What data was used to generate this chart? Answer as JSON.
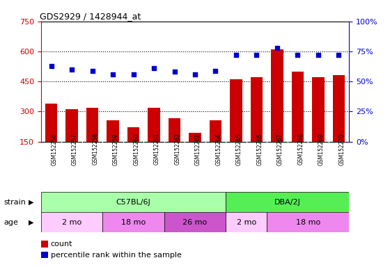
{
  "title": "GDS2929 / 1428944_at",
  "samples": [
    "GSM152256",
    "GSM152257",
    "GSM152258",
    "GSM152259",
    "GSM152260",
    "GSM152261",
    "GSM152262",
    "GSM152263",
    "GSM152264",
    "GSM152265",
    "GSM152266",
    "GSM152267",
    "GSM152268",
    "GSM152269",
    "GSM152270"
  ],
  "counts": [
    340,
    310,
    320,
    255,
    220,
    320,
    265,
    195,
    255,
    460,
    470,
    610,
    500,
    470,
    480
  ],
  "percentiles": [
    63,
    60,
    59,
    56,
    56,
    61,
    58,
    56,
    59,
    72,
    72,
    78,
    72,
    72,
    72
  ],
  "bar_color": "#cc0000",
  "dot_color": "#0000cc",
  "ylim_left": [
    150,
    750
  ],
  "ylim_right": [
    0,
    100
  ],
  "yticks_left": [
    150,
    300,
    450,
    600,
    750
  ],
  "yticks_right": [
    0,
    25,
    50,
    75,
    100
  ],
  "strain_labels": [
    {
      "label": "C57BL/6J",
      "start": 0,
      "end": 8,
      "color": "#aaffaa"
    },
    {
      "label": "DBA/2J",
      "start": 9,
      "end": 14,
      "color": "#55ee55"
    }
  ],
  "age_labels": [
    {
      "label": "2 mo",
      "start": 0,
      "end": 2,
      "color": "#ffccff"
    },
    {
      "label": "18 mo",
      "start": 3,
      "end": 5,
      "color": "#ee88ee"
    },
    {
      "label": "26 mo",
      "start": 6,
      "end": 8,
      "color": "#cc55cc"
    },
    {
      "label": "2 mo",
      "start": 9,
      "end": 10,
      "color": "#ffccff"
    },
    {
      "label": "18 mo",
      "start": 11,
      "end": 14,
      "color": "#ee88ee"
    }
  ],
  "legend_count_color": "#cc0000",
  "legend_dot_color": "#0000cc",
  "right_axis_color": "#0000cc",
  "left_axis_color": "#cc0000",
  "label_bg_color": "#cccccc",
  "chart_bg_color": "#ffffff"
}
